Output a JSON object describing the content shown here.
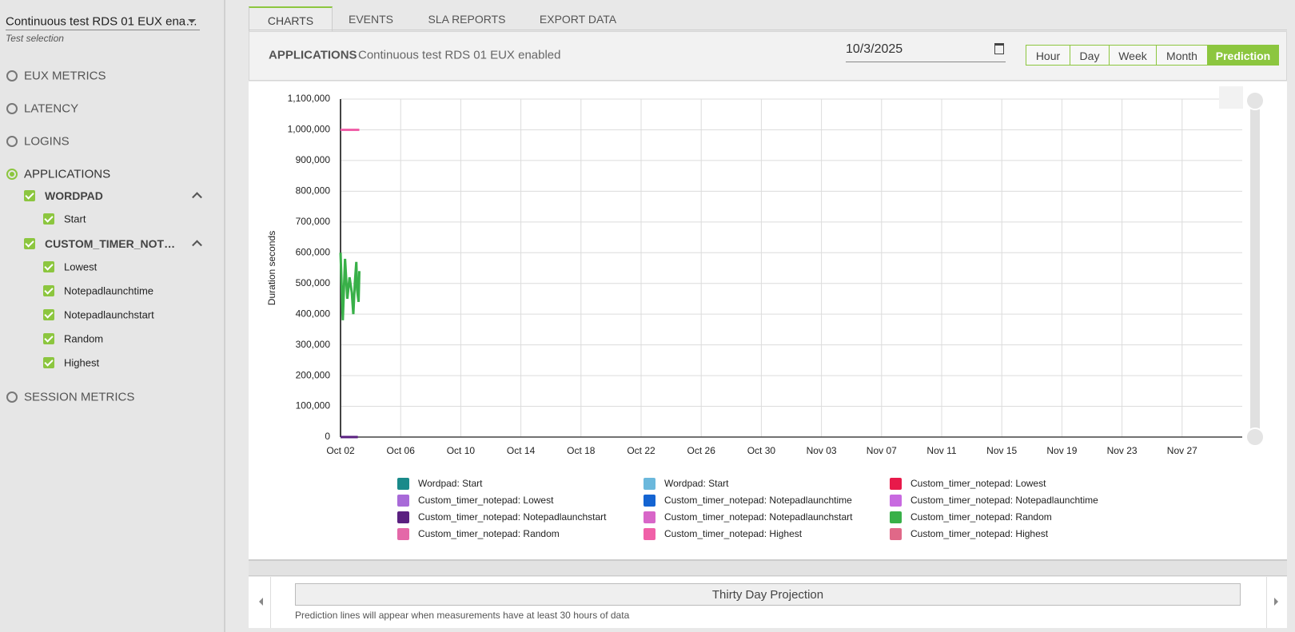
{
  "sidebar": {
    "test_selection": "Continuous test RDS 01 EUX ena…",
    "test_selection_hint": "Test selection",
    "metrics": [
      {
        "label": "EUX METRICS"
      },
      {
        "label": "LATENCY"
      },
      {
        "label": "LOGINS"
      },
      {
        "label": "APPLICATIONS",
        "selected": true,
        "groups": [
          {
            "label": "WORDPAD",
            "items": [
              "Start"
            ]
          },
          {
            "label": "CUSTOM_TIMER_NOT…",
            "items": [
              "Lowest",
              "Notepadlaunchtime",
              "Notepadlaunchstart",
              "Random",
              "Highest"
            ]
          }
        ]
      },
      {
        "label": "SESSION METRICS"
      }
    ]
  },
  "tabs": [
    {
      "label": "CHARTS",
      "active": true
    },
    {
      "label": "EVENTS"
    },
    {
      "label": "SLA REPORTS"
    },
    {
      "label": "EXPORT DATA"
    }
  ],
  "header": {
    "title": "APPLICATIONS",
    "subtitle": "Continuous test RDS 01 EUX enabled",
    "date": "10/3/2025",
    "ranges": [
      {
        "label": "Hour"
      },
      {
        "label": "Day"
      },
      {
        "label": "Week"
      },
      {
        "label": "Month"
      },
      {
        "label": "Prediction",
        "active": true
      }
    ]
  },
  "chart_data": {
    "type": "line",
    "y_label": "Duration seconds",
    "ylim": [
      0,
      1100000
    ],
    "yticks": [
      0,
      {
        "value": 100000,
        "label": "100,000"
      },
      {
        "value": 200000,
        "label": "200,000"
      },
      {
        "value": 300000,
        "label": "300,000"
      },
      {
        "value": 400000,
        "label": "400,000"
      },
      {
        "value": 500000,
        "label": "500,000"
      },
      {
        "value": 600000,
        "label": "600,000"
      },
      {
        "value": 700000,
        "label": "700,000"
      },
      {
        "value": 800000,
        "label": "800,000"
      },
      {
        "value": 900000,
        "label": "900,000"
      },
      {
        "value": 1000000,
        "label": "1,000,000"
      },
      {
        "value": 1100000,
        "label": "1,100,000"
      }
    ],
    "xlim": [
      2,
      62
    ],
    "xticks": [
      {
        "value": 2,
        "label": "Oct 02"
      },
      {
        "value": 6,
        "label": "Oct 06"
      },
      {
        "value": 10,
        "label": "Oct 10"
      },
      {
        "value": 14,
        "label": "Oct 14"
      },
      {
        "value": 18,
        "label": "Oct 18"
      },
      {
        "value": 22,
        "label": "Oct 22"
      },
      {
        "value": 26,
        "label": "Oct 26"
      },
      {
        "value": 30,
        "label": "Oct 30"
      },
      {
        "value": 34,
        "label": "Nov 03"
      },
      {
        "value": 38,
        "label": "Nov 07"
      },
      {
        "value": 42,
        "label": "Nov 11"
      },
      {
        "value": 46,
        "label": "Nov 15"
      },
      {
        "value": 50,
        "label": "Nov 19"
      },
      {
        "value": 54,
        "label": "Nov 23"
      },
      {
        "value": 58,
        "label": "Nov 27"
      }
    ],
    "grid": true,
    "legend": "bottom",
    "series": [
      {
        "name": "Wordpad: Start",
        "color": "#1a8a8a",
        "x": [],
        "values": []
      },
      {
        "name": "Wordpad: Start",
        "color": "#6bb8dc",
        "x": [],
        "values": []
      },
      {
        "name": "Custom_timer_notepad: Lowest",
        "color": "#e8194a",
        "x": [],
        "values": []
      },
      {
        "name": "Custom_timer_notepad: Lowest",
        "color": "#a86ad8",
        "x": [],
        "values": []
      },
      {
        "name": "Custom_timer_notepad: Notepadlaunchtime",
        "color": "#1464d2",
        "x": [],
        "values": []
      },
      {
        "name": "Custom_timer_notepad: Notepadlaunchtime",
        "color": "#c86ae0",
        "x": [],
        "values": []
      },
      {
        "name": "Custom_timer_notepad: Notepadlaunchstart",
        "color": "#5a2080",
        "x": [
          2,
          3.15
        ],
        "values": [
          0,
          0
        ]
      },
      {
        "name": "Custom_timer_notepad: Notepadlaunchstart",
        "color": "#d866c8",
        "x": [],
        "values": []
      },
      {
        "name": "Custom_timer_notepad: Random",
        "color": "#38b048",
        "x": [
          2,
          2.15,
          2.3,
          2.45,
          2.6,
          2.75,
          2.85,
          2.95,
          3.05,
          3.1,
          3.2,
          3.25
        ],
        "values": [
          600000,
          380000,
          580000,
          450000,
          520000,
          470000,
          400000,
          500000,
          570000,
          480000,
          440000,
          540000
        ]
      },
      {
        "name": "Custom_timer_notepad: Random",
        "color": "#e468a8",
        "x": [],
        "values": []
      },
      {
        "name": "Custom_timer_notepad: Highest",
        "color": "#f060a8",
        "x": [
          2,
          3.25
        ],
        "values": [
          1000000,
          1000000
        ]
      },
      {
        "name": "Custom_timer_notepad: Highest",
        "color": "#e06888",
        "x": [],
        "values": []
      }
    ]
  },
  "footer": {
    "button": "Thirty Day Projection",
    "note": "Prediction lines will appear when measurements have at least 30 hours of data"
  }
}
